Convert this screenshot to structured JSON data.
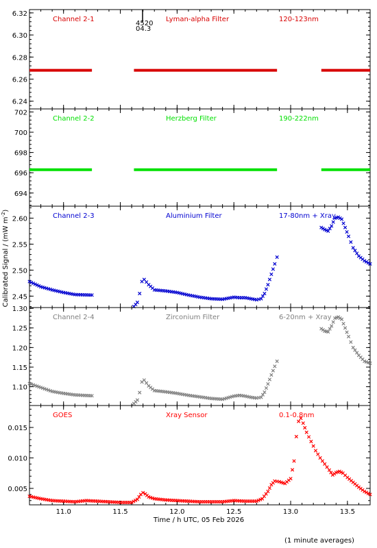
{
  "figure": {
    "ylabel": "Calibrated Signal / (mW m",
    "ylabel_sup": "-2",
    "ylabel_end": ")",
    "xlabel": "Time / h UTC, 05 Feb 2026",
    "footnote": "(1 minute averages)",
    "marker_labels": [
      "4520",
      "04.3"
    ]
  },
  "chart_data": [
    {
      "type": "scatter",
      "channel_label": "Channel 2-1",
      "filter_label": "Lyman-alpha Filter",
      "band_label": "120-123nm",
      "color": "#d80000",
      "marker": "line",
      "ylim": [
        6.233,
        6.323
      ],
      "yticks": [
        6.24,
        6.26,
        6.28,
        6.3,
        6.32
      ],
      "xlim": [
        10.7,
        13.7
      ],
      "series": [
        {
          "x": [
            10.7,
            11.25
          ],
          "y": [
            6.268,
            6.268
          ]
        },
        {
          "x": [
            11.62,
            12.88
          ],
          "y": [
            6.268,
            6.268
          ]
        },
        {
          "x": [
            13.27,
            13.7
          ],
          "y": [
            6.268,
            6.268
          ]
        }
      ]
    },
    {
      "type": "scatter",
      "channel_label": "Channel 2-2",
      "filter_label": "Herzberg Filter",
      "band_label": "190-222nm",
      "color": "#00e000",
      "marker": "line",
      "ylim": [
        692.7,
        702.3
      ],
      "yticks": [
        694,
        696,
        698,
        700,
        702
      ],
      "xlim": [
        10.7,
        13.7
      ],
      "series": [
        {
          "x": [
            10.7,
            11.25
          ],
          "y": [
            696.3,
            696.3
          ]
        },
        {
          "x": [
            11.62,
            12.88
          ],
          "y": [
            696.3,
            696.3
          ]
        },
        {
          "x": [
            13.27,
            13.7
          ],
          "y": [
            696.3,
            696.3
          ]
        }
      ]
    },
    {
      "type": "scatter",
      "channel_label": "Channel 2-3",
      "filter_label": "Aluminium Filter",
      "band_label": "17-80nm + Xray",
      "color": "#0000d0",
      "marker": "x",
      "ylim": [
        2.428,
        2.623
      ],
      "yticks": [
        2.45,
        2.5,
        2.55,
        2.6
      ],
      "xlim": [
        10.7,
        13.7
      ],
      "series": [
        {
          "x": [
            10.7,
            10.8,
            10.9,
            11.0,
            11.1,
            11.25
          ],
          "y": [
            2.478,
            2.468,
            2.462,
            2.457,
            2.453,
            2.452
          ]
        },
        {
          "x": [
            11.62,
            11.65,
            11.67,
            11.69,
            11.71,
            11.75,
            11.8,
            11.9,
            12.0,
            12.1,
            12.2,
            12.3,
            12.4,
            12.5,
            12.55,
            12.6,
            12.65,
            12.7,
            12.74,
            12.77,
            12.8,
            12.83,
            12.86,
            12.88
          ],
          "y": [
            2.43,
            2.438,
            2.455,
            2.478,
            2.482,
            2.472,
            2.462,
            2.46,
            2.457,
            2.452,
            2.448,
            2.445,
            2.444,
            2.448,
            2.447,
            2.447,
            2.445,
            2.443,
            2.445,
            2.455,
            2.472,
            2.492,
            2.512,
            2.525
          ]
        },
        {
          "x": [
            13.27,
            13.3,
            13.33,
            13.36,
            13.39,
            13.42,
            13.45,
            13.48,
            13.51,
            13.55,
            13.6,
            13.65,
            13.7
          ],
          "y": [
            2.582,
            2.578,
            2.575,
            2.585,
            2.6,
            2.602,
            2.598,
            2.582,
            2.565,
            2.543,
            2.527,
            2.518,
            2.512
          ]
        }
      ]
    },
    {
      "type": "scatter",
      "channel_label": "Channel 2-4",
      "filter_label": "Zirconium Filter",
      "band_label": "6-20nm + Xray",
      "color": "#7f7f7f",
      "marker": "x",
      "ylim": [
        1.052,
        1.302
      ],
      "yticks": [
        1.1,
        1.15,
        1.2,
        1.25,
        1.3
      ],
      "xlim": [
        10.7,
        13.7
      ],
      "series": [
        {
          "x": [
            10.7,
            10.8,
            10.9,
            11.0,
            11.1,
            11.25
          ],
          "y": [
            1.108,
            1.098,
            1.088,
            1.083,
            1.079,
            1.077
          ]
        },
        {
          "x": [
            11.62,
            11.65,
            11.67,
            11.69,
            11.71,
            11.75,
            11.8,
            11.9,
            12.0,
            12.1,
            12.2,
            12.3,
            12.4,
            12.5,
            12.55,
            12.6,
            12.65,
            12.7,
            12.74,
            12.77,
            12.8,
            12.83,
            12.86,
            12.88
          ],
          "y": [
            1.057,
            1.066,
            1.085,
            1.112,
            1.117,
            1.102,
            1.09,
            1.087,
            1.083,
            1.078,
            1.074,
            1.07,
            1.068,
            1.076,
            1.078,
            1.076,
            1.073,
            1.071,
            1.073,
            1.086,
            1.107,
            1.13,
            1.152,
            1.165
          ]
        },
        {
          "x": [
            13.27,
            13.3,
            13.33,
            13.36,
            13.39,
            13.42,
            13.45,
            13.48,
            13.51,
            13.55,
            13.6,
            13.65,
            13.7
          ],
          "y": [
            1.248,
            1.242,
            1.24,
            1.255,
            1.275,
            1.278,
            1.272,
            1.25,
            1.228,
            1.2,
            1.18,
            1.165,
            1.16
          ]
        }
      ]
    },
    {
      "type": "scatter",
      "channel_label": "GOES",
      "filter_label": "Xray Sensor",
      "band_label": "0.1-0.8nm",
      "color": "#ff0000",
      "marker": "x",
      "ylim": [
        0.0023,
        0.0186
      ],
      "yticks": [
        0.005,
        0.01,
        0.015
      ],
      "ytick_labels": [
        "0.005",
        "0.010",
        "0.015"
      ],
      "xlim": [
        10.7,
        13.7
      ],
      "series": [
        {
          "x": [
            10.7,
            10.8,
            10.9,
            11.0,
            11.1,
            11.2,
            11.3,
            11.4,
            11.5,
            11.6,
            11.65,
            11.68,
            11.7,
            11.72,
            11.75,
            11.8,
            11.9,
            12.0,
            12.1,
            12.2,
            12.3,
            12.4,
            12.5,
            12.6,
            12.7,
            12.75,
            12.8,
            12.83,
            12.86,
            12.9,
            12.95,
            13.0,
            13.03,
            13.05,
            13.07,
            13.09,
            13.11,
            13.14,
            13.18,
            13.22,
            13.26,
            13.3,
            13.34,
            13.37,
            13.4,
            13.43,
            13.46,
            13.5,
            13.55,
            13.6,
            13.65,
            13.7
          ],
          "y": [
            0.0037,
            0.0033,
            0.003,
            0.0029,
            0.0028,
            0.003,
            0.0029,
            0.0028,
            0.0027,
            0.0027,
            0.0032,
            0.004,
            0.0043,
            0.0041,
            0.0036,
            0.0033,
            0.0031,
            0.003,
            0.0029,
            0.0028,
            0.0028,
            0.0028,
            0.003,
            0.0029,
            0.0029,
            0.0033,
            0.0045,
            0.0056,
            0.0062,
            0.0061,
            0.0058,
            0.0066,
            0.0095,
            0.0135,
            0.016,
            0.0165,
            0.0157,
            0.0142,
            0.0127,
            0.0112,
            0.01,
            0.009,
            0.008,
            0.0072,
            0.0076,
            0.0078,
            0.0075,
            0.0068,
            0.006,
            0.0052,
            0.0045,
            0.004
          ]
        }
      ]
    }
  ],
  "x_axis": {
    "ticks": [
      11.0,
      11.5,
      12.0,
      12.5,
      13.0,
      13.5
    ],
    "tick_labels": [
      "11.0",
      "11.5",
      "12.0",
      "12.5",
      "13.0",
      "13.5"
    ]
  }
}
